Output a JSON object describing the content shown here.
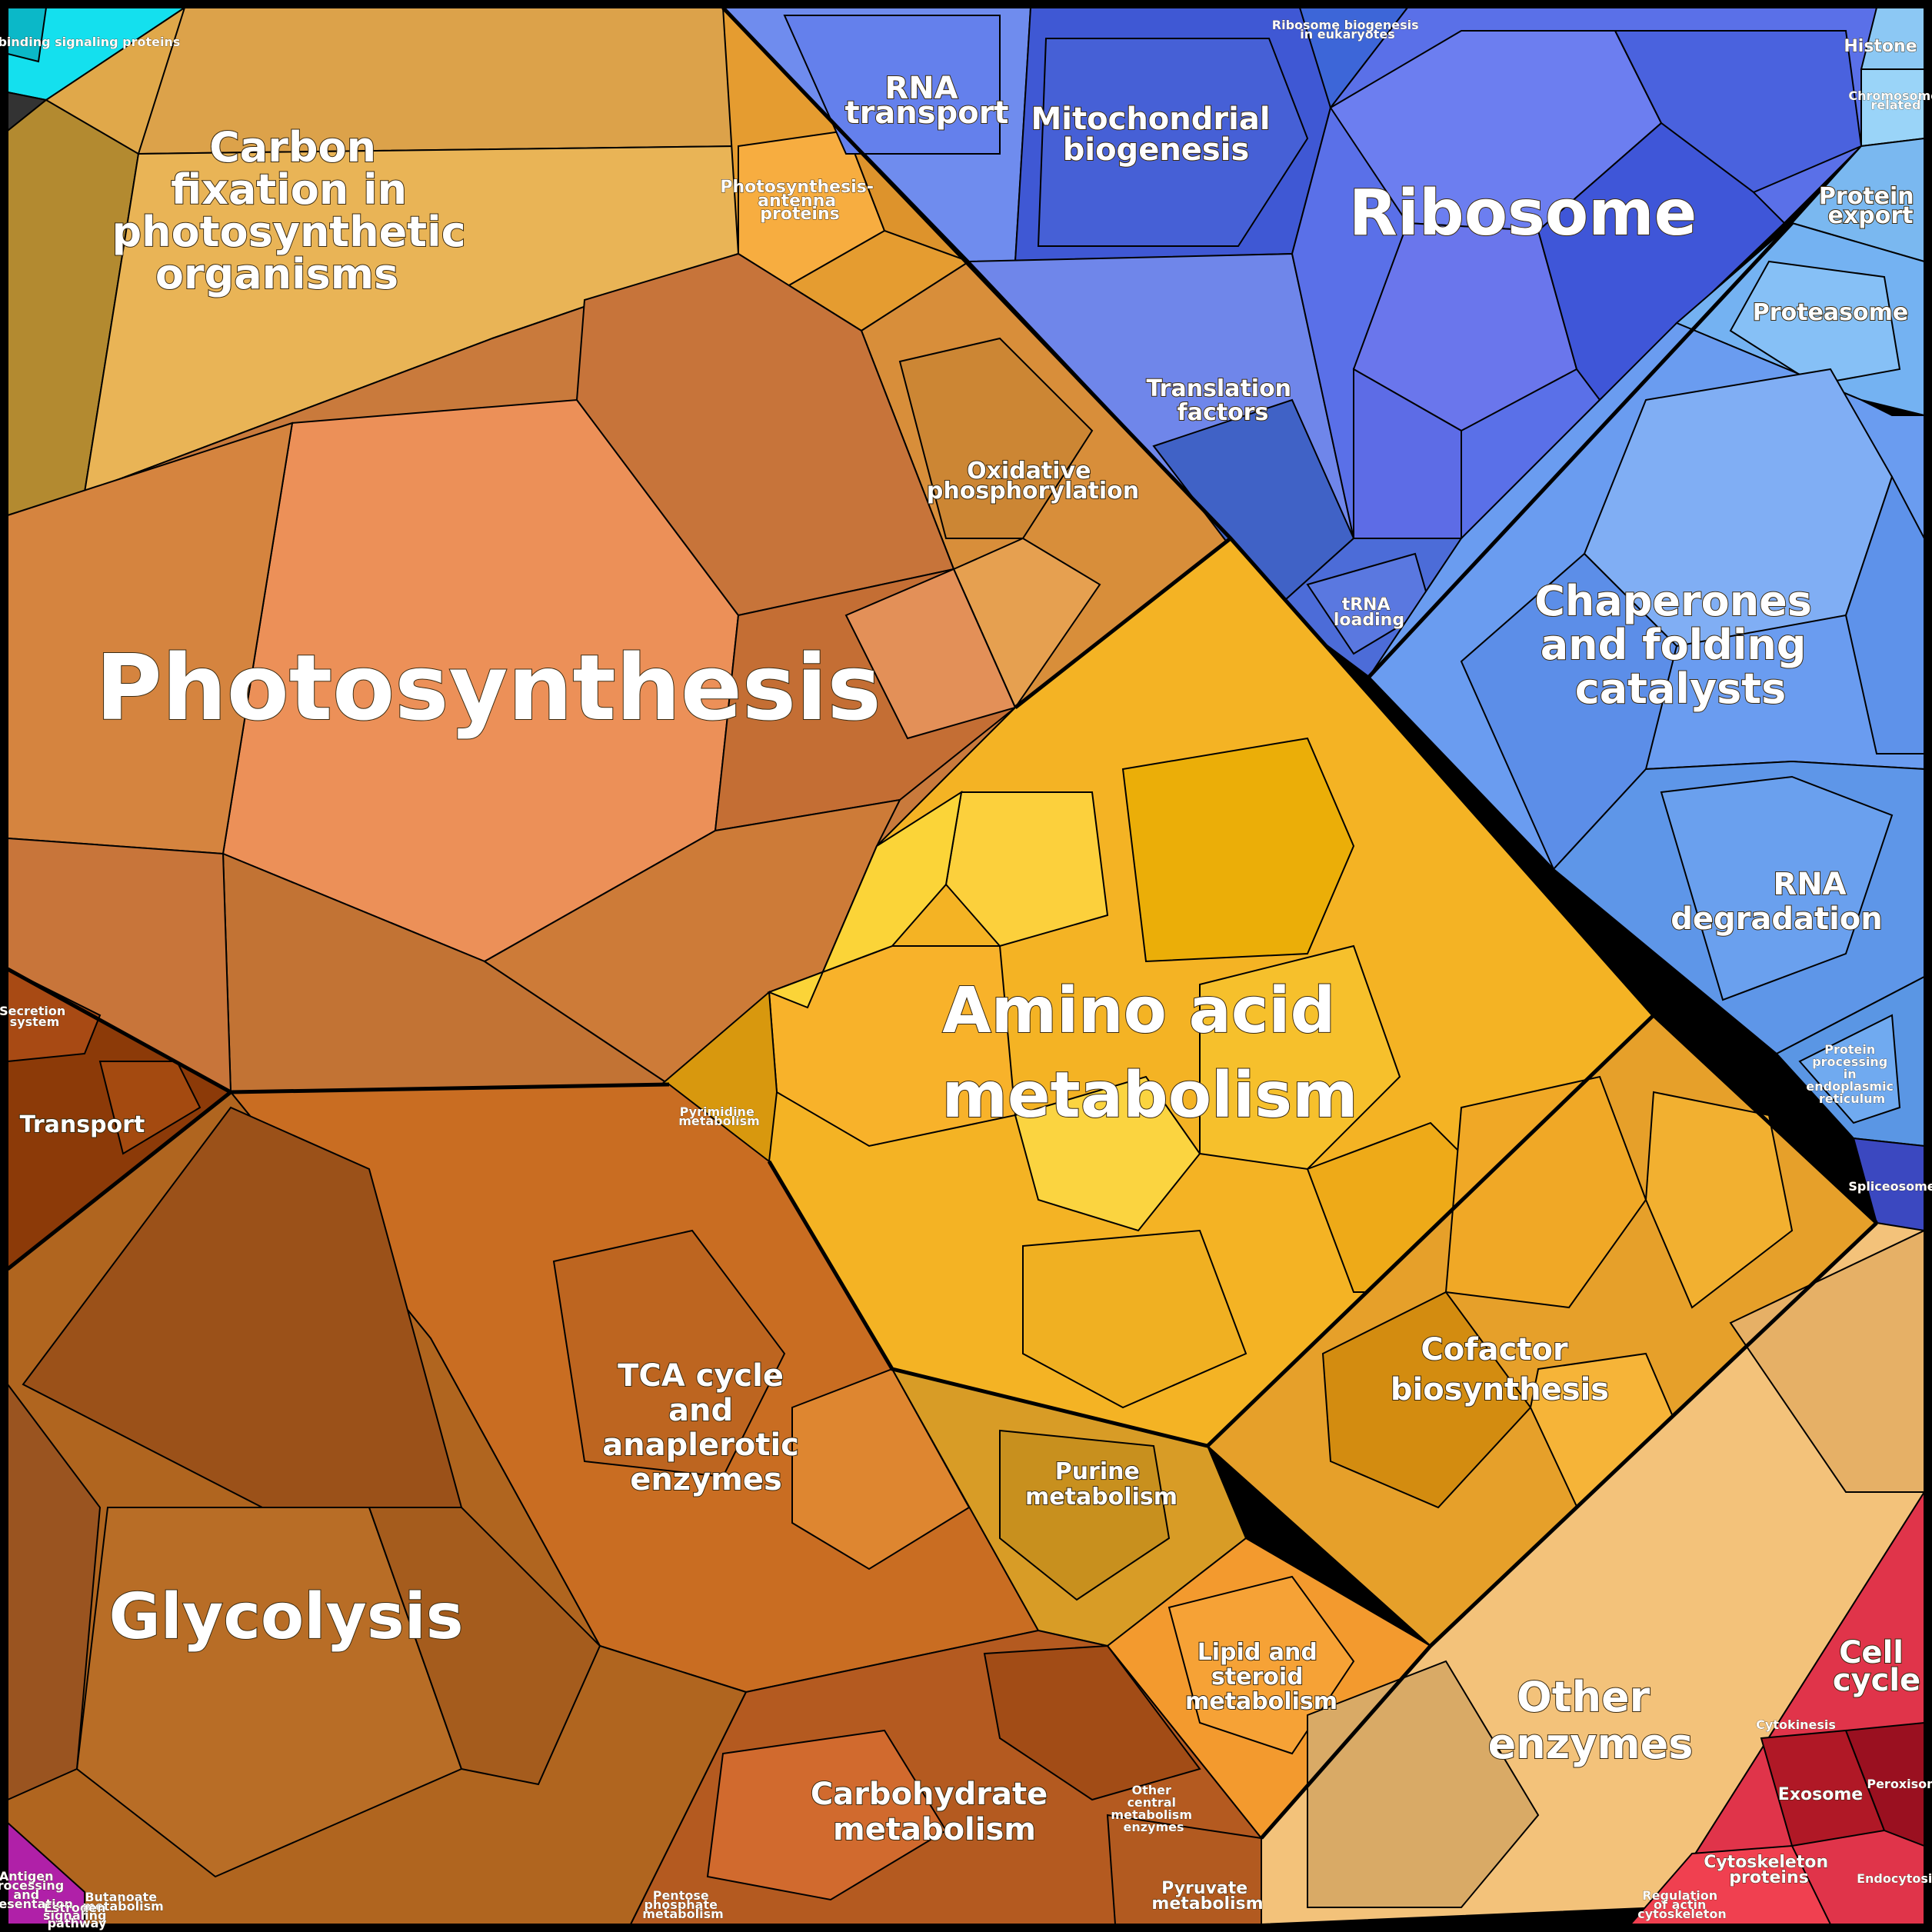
{
  "labels": {
    "gtp": "GTP-binding signaling proteins",
    "carbon_fixation": [
      "Carbon",
      "fixation in",
      "photosynthetic",
      "organisms"
    ],
    "photosynthesis_antenna": [
      "Photosynthesis-",
      "antenna",
      "proteins"
    ],
    "photosynthesis": "Photosynthesis",
    "oxidative": [
      "Oxidative",
      "phosphorylation"
    ],
    "rna_transport": [
      "RNA",
      "transport"
    ],
    "mito": [
      "Mitochondrial",
      "biogenesis"
    ],
    "ribosome_biogenesis": [
      "Ribosome biogenesis",
      "in eukaryotes"
    ],
    "ribosome": "Ribosome",
    "histone": "Histone",
    "chromosome": [
      "Chromosome",
      "related"
    ],
    "protein_export": [
      "Protein",
      "export"
    ],
    "proteasome": "Proteasome",
    "translation": [
      "Translation",
      "factors"
    ],
    "trna": [
      "tRNA",
      "loading"
    ],
    "chaperones": [
      "Chaperones",
      "and folding",
      "catalysts"
    ],
    "rna_degradation": [
      "RNA",
      "degradation"
    ],
    "protein_processing": [
      "Protein",
      "processing",
      "in",
      "endoplasmic",
      "reticulum"
    ],
    "spliceosome": "Spliceosome",
    "secretion": [
      "Secretion",
      "system"
    ],
    "transport": "Transport",
    "amino_acid": [
      "Amino acid",
      "metabolism"
    ],
    "pyrimidine": [
      "Pyrimidine",
      "metabolism"
    ],
    "cofactor": [
      "Cofactor",
      "biosynthesis"
    ],
    "tca": [
      "TCA cycle",
      "and",
      "anaplerotic",
      "enzymes"
    ],
    "purine": [
      "Purine",
      "metabolism"
    ],
    "glycolysis": "Glycolysis",
    "lipid": [
      "Lipid and",
      "steroid",
      "metabolism"
    ],
    "other_enzymes": [
      "Other",
      "enzymes"
    ],
    "cell_cycle": [
      "Cell",
      "cycle"
    ],
    "cytokinesis": "Cytokinesis",
    "exosome": "Exosome",
    "peroxisome": "Peroxisome",
    "endocytosis": "Endocytosis",
    "cytoskeleton": [
      "Cytoskeleton",
      "proteins"
    ],
    "actin": [
      "Regulation",
      "of actin",
      "cytoskeleton"
    ],
    "carbohydrate": [
      "Carbohydrate",
      "metabolism"
    ],
    "other_central": [
      "Other",
      "central",
      "metabolism",
      "enzymes"
    ],
    "pyruvate": [
      "Pyruvate",
      "metabolism"
    ],
    "pentose": [
      "Pentose",
      "phosphate",
      "metabolism"
    ],
    "butanoate": [
      "Butanoate",
      "metabolism"
    ],
    "antigen": [
      "Antigen",
      "processing",
      "and",
      "presentation"
    ],
    "estrogen": [
      "Estrogen",
      "signaling",
      "pathway"
    ]
  },
  "colors": {
    "photosynthesis": "#e88a52",
    "carbon": "#e0a84a",
    "amino": "#f4b324",
    "cofactor": "#e6a02a",
    "glycolysis": "#b0651f",
    "tca": "#c96d22",
    "carbohydrate": "#b45a20",
    "ribosome": "#5a6ee8",
    "chaperones": "#6aa2f0",
    "other_enzymes": "#f3c27a",
    "cell_cycle": "#e0344a",
    "transport": "#8a3a0c",
    "gtp": "#16e2f0"
  }
}
